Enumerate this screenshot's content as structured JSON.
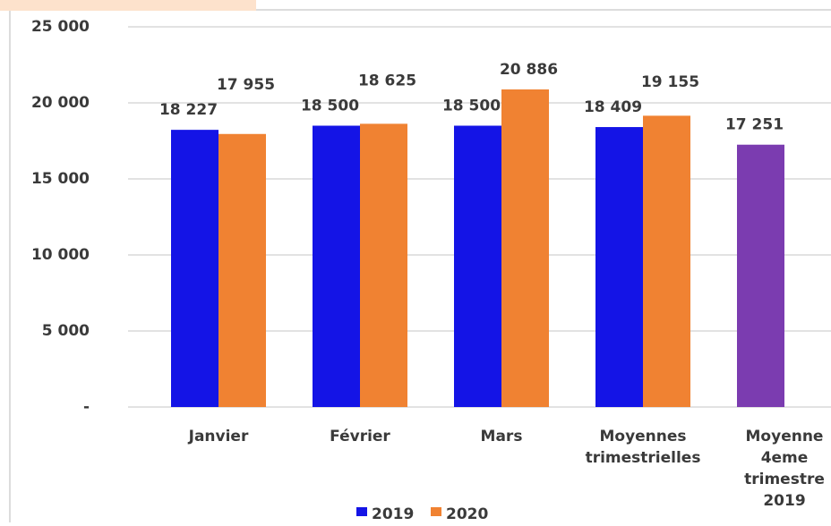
{
  "chart_data": {
    "type": "bar",
    "categories": [
      "Janvier",
      "Février",
      "Mars",
      "Moyennes trimestrielles",
      "Moyenne 4eme trimestre 2019"
    ],
    "series": [
      {
        "name": "2019",
        "color": "#1414e6",
        "colors": [
          "#1414e6",
          "#1414e6",
          "#1414e6",
          "#1414e6",
          "#7b3cb0"
        ],
        "values": [
          18227,
          18500,
          18500,
          18409,
          17251
        ],
        "value_labels": [
          "18 227",
          "18 500",
          "18 500",
          "18 409",
          "17 251"
        ]
      },
      {
        "name": "2020",
        "color": "#f08232",
        "colors": [
          "#f08232",
          "#f08232",
          "#f08232",
          "#f08232",
          "#f08232"
        ],
        "values": [
          17955,
          18625,
          20886,
          19155,
          null
        ],
        "value_labels": [
          "17 955",
          "18 625",
          "20 886",
          "19 155",
          null
        ]
      }
    ],
    "ylim": [
      0,
      25000
    ],
    "yticks": [
      {
        "value": 0,
        "label": "-"
      },
      {
        "value": 5000,
        "label": "5 000"
      },
      {
        "value": 10000,
        "label": "10 000"
      },
      {
        "value": 15000,
        "label": "15 000"
      },
      {
        "value": 20000,
        "label": "20 000"
      },
      {
        "value": 25000,
        "label": "25 000"
      }
    ],
    "grid": true,
    "legend": "bottom"
  }
}
